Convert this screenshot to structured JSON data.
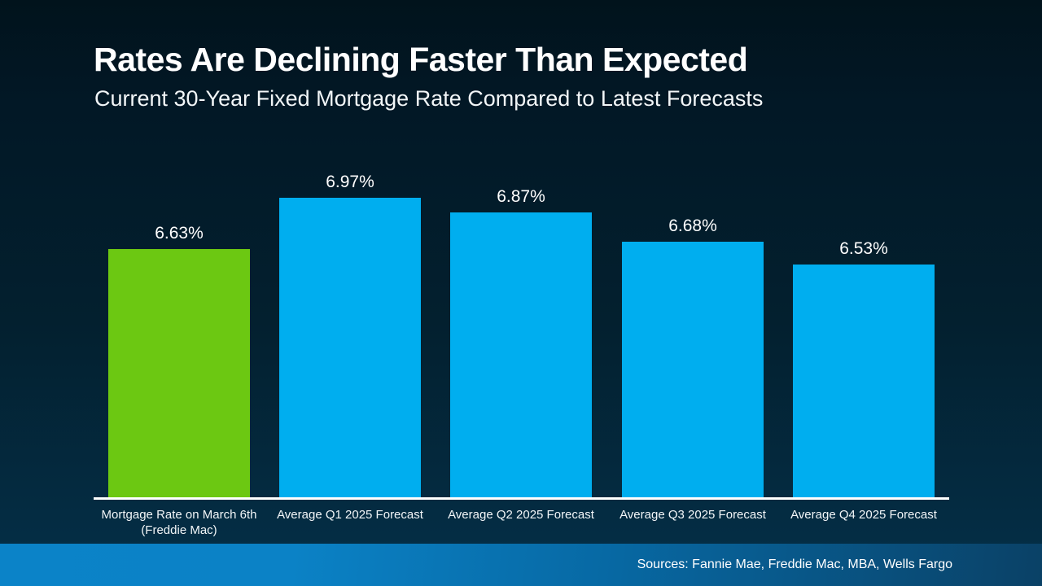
{
  "slide": {
    "title": "Rates Are Declining Faster Than Expected",
    "subtitle": "Current 30-Year Fixed Mortgage Rate Compared to Latest Forecasts",
    "footer": {
      "sources": "Sources: Fannie Mae, Freddie Mac, MBA, Wells Fargo"
    }
  },
  "colors": {
    "current_rate_bar": "#6cc812",
    "forecast_bar": "#00aeef",
    "axis_line": "#ffffff",
    "text": "#ffffff",
    "background_top": "#01131c",
    "background_bottom": "#043049",
    "footer_left": "#0b83c8",
    "footer_right": "#0a4166"
  },
  "chart_data": {
    "type": "bar",
    "title": "Rates Are Declining Faster Than Expected",
    "subtitle": "Current 30-Year Fixed Mortgage Rate Compared to Latest Forecasts",
    "categories": [
      "Mortgage Rate on March 6th (Freddie Mac)",
      "Average Q1 2025 Forecast",
      "Average Q2 2025 Forecast",
      "Average Q3 2025 Forecast",
      "Average Q4 2025 Forecast"
    ],
    "category_lines": [
      [
        "Mortgage Rate on March 6th",
        "(Freddie Mac)"
      ],
      [
        "Average Q1 2025 Forecast"
      ],
      [
        "Average Q2 2025 Forecast"
      ],
      [
        "Average Q3 2025 Forecast"
      ],
      [
        "Average Q4 2025 Forecast"
      ]
    ],
    "values": [
      6.63,
      6.97,
      6.87,
      6.68,
      6.53
    ],
    "data_labels": [
      "6.63%",
      "6.97%",
      "6.87%",
      "6.68%",
      "6.53%"
    ],
    "bar_colors": [
      "#6cc812",
      "#00aeef",
      "#00aeef",
      "#00aeef",
      "#00aeef"
    ],
    "xlabel": "",
    "ylabel": "",
    "ylim": [
      5.0,
      7.3
    ],
    "grid": false,
    "legend": false,
    "data_labels_position": "above-bars"
  }
}
